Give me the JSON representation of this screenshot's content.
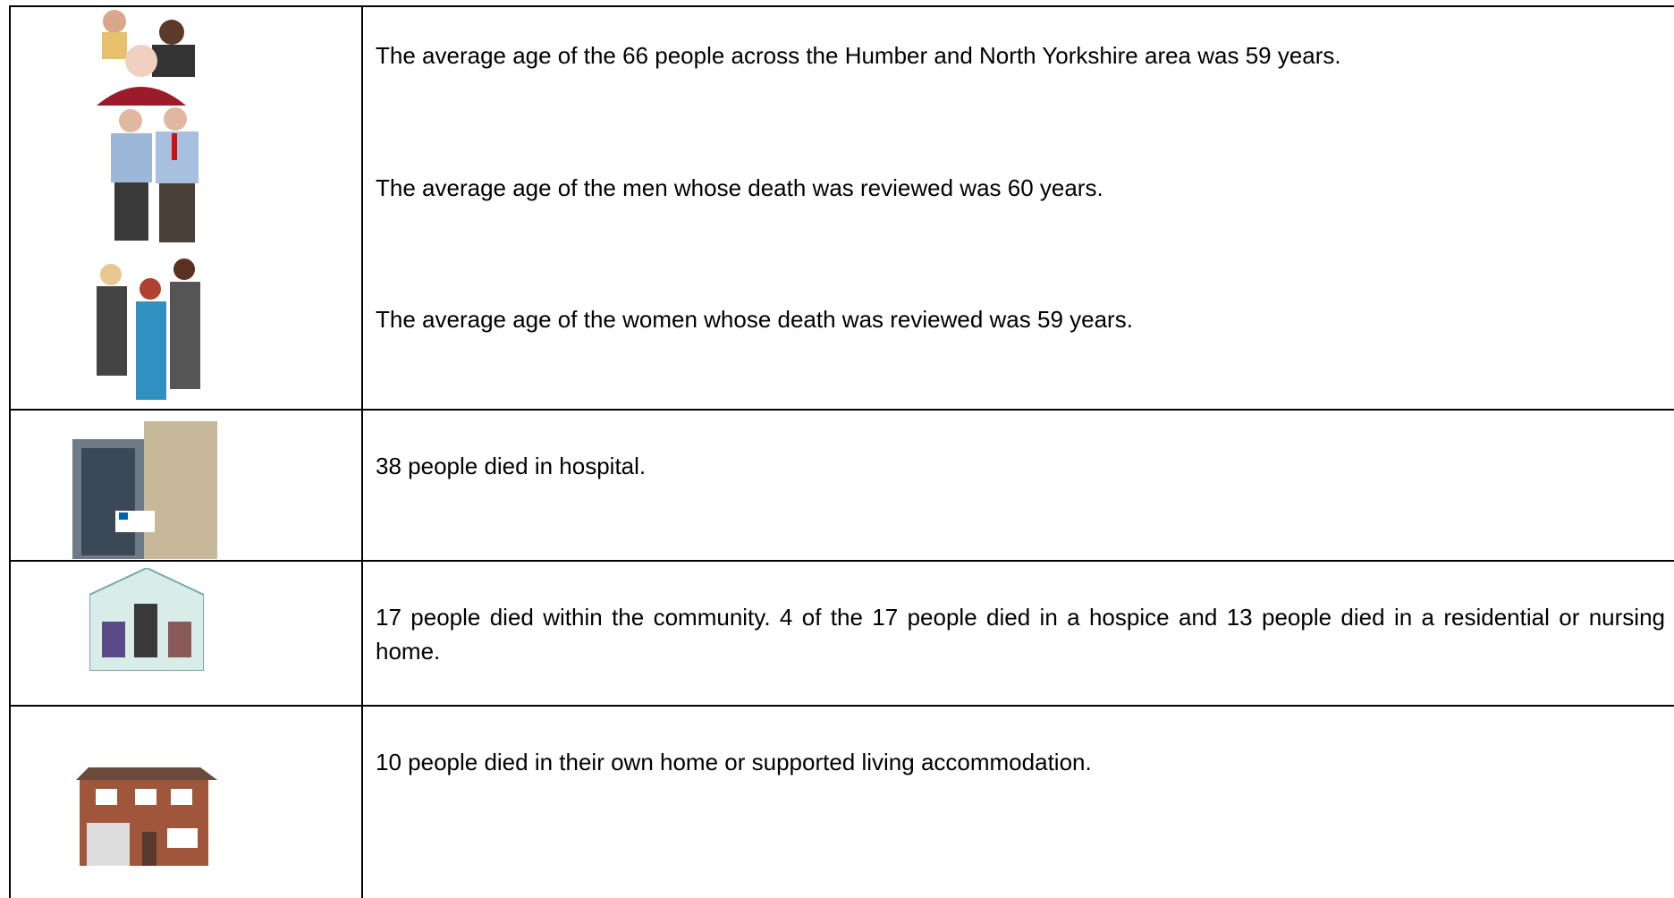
{
  "table": {
    "rows": [
      [
        "The average age of the 66 people across the Humber and North Yorkshire area was 59 years.",
        "The average age of the men whose death was reviewed was 60 years.",
        "The average age of the women whose death was reviewed was 59 years."
      ],
      [
        "38 people died in hospital."
      ],
      [
        "17 people died within the community. 4 of the 17 people died in a hospice and 13 people died in a residential or nursing home."
      ],
      [
        "10 people died in their own home or supported living accommodation."
      ]
    ]
  }
}
